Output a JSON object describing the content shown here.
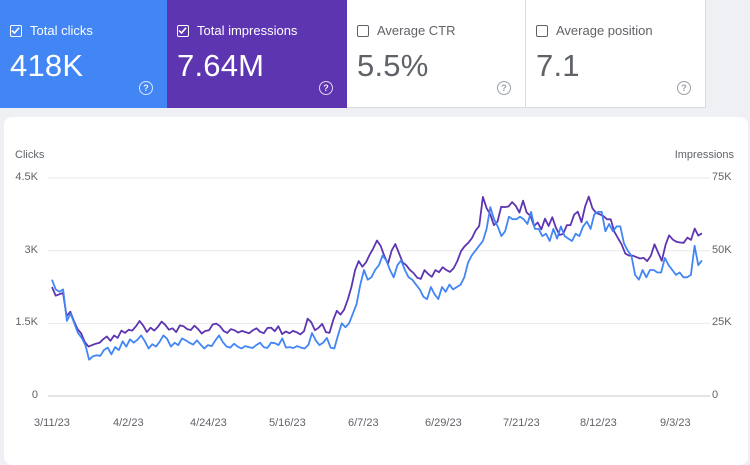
{
  "metrics": [
    {
      "label": "Total clicks",
      "value": "418K",
      "selected": true,
      "color": "#4285f4"
    },
    {
      "label": "Total impressions",
      "value": "7.64M",
      "selected": true,
      "color": "#5e35b1"
    },
    {
      "label": "Average CTR",
      "value": "5.5%",
      "selected": false
    },
    {
      "label": "Average position",
      "value": "7.1",
      "selected": false
    }
  ],
  "help_glyph": "?",
  "chart": {
    "left_axis_title": "Clicks",
    "right_axis_title": "Impressions",
    "left_ticks": [
      "4.5K",
      "3K",
      "1.5K",
      "0"
    ],
    "right_ticks": [
      "75K",
      "50K",
      "25K",
      "0"
    ],
    "x_ticks": [
      "3/11/23",
      "4/2/23",
      "4/24/23",
      "5/16/23",
      "6/7/23",
      "6/29/23",
      "7/21/23",
      "8/12/23",
      "9/3/23"
    ]
  },
  "chart_data": {
    "type": "line",
    "x_start": "3/11/23",
    "x_end": "9/10/23",
    "y_left_label": "Clicks",
    "y_right_label": "Impressions",
    "ylim_left": [
      0,
      4500
    ],
    "ylim_right": [
      0,
      75000
    ],
    "grid": true,
    "series": [
      {
        "name": "Total clicks",
        "axis": "left",
        "color": "#4285f4",
        "values": [
          2400,
          2200,
          2150,
          2200,
          1550,
          1700,
          1500,
          1300,
          1200,
          1050,
          750,
          820,
          840,
          830,
          950,
          1000,
          860,
          1010,
          950,
          1130,
          1020,
          1170,
          1100,
          1160,
          1250,
          1130,
          980,
          1070,
          1020,
          1120,
          1250,
          1180,
          1020,
          1100,
          1050,
          1190,
          1150,
          1100,
          1060,
          1150,
          1060,
          980,
          1050,
          1030,
          1150,
          1250,
          1110,
          1020,
          1000,
          1080,
          1020,
          980,
          1030,
          1010,
          990,
          1050,
          1100,
          1010,
          990,
          1100,
          1090,
          1050,
          1190,
          1000,
          1010,
          990,
          1030,
          1000,
          980,
          1050,
          1300,
          1150,
          1050,
          1100,
          1200,
          1000,
          980,
          1250,
          1500,
          1420,
          1500,
          1700,
          1900,
          2300,
          2600,
          2400,
          2450,
          2600,
          2700,
          2900,
          2800,
          2600,
          2450,
          2700,
          2800,
          2600,
          2450,
          2400,
          2300,
          2200,
          2050,
          2000,
          2250,
          2100,
          2000,
          2250,
          2150,
          2300,
          2200,
          2250,
          2300,
          2450,
          2750,
          2900,
          3000,
          3100,
          3200,
          3450,
          3900,
          3650,
          3500,
          3300,
          3400,
          3700,
          3650,
          3650,
          3700,
          3650,
          3550,
          3800,
          3450,
          3450,
          3300,
          3350,
          3200,
          3450,
          3250,
          3500,
          3300,
          3250,
          3200,
          3350,
          3300,
          3500,
          3600,
          3450,
          3750,
          3800,
          3800,
          3400,
          3550,
          3400,
          3500,
          3500,
          3150,
          3000,
          2900,
          2500,
          2400,
          2600,
          2450,
          2600,
          2600,
          2550,
          2550,
          2850,
          2700,
          2600,
          2500,
          2550,
          2450,
          2450,
          2500,
          3100,
          2700,
          2800
        ]
      },
      {
        "name": "Total impressions",
        "axis": "right",
        "color": "#5e35b1",
        "values": [
          37500,
          34500,
          35000,
          35500,
          27500,
          29000,
          25800,
          23000,
          21500,
          18500,
          17000,
          17500,
          18000,
          18300,
          19500,
          20500,
          19000,
          20800,
          20000,
          22500,
          21700,
          22800,
          22500,
          24000,
          25800,
          24200,
          22000,
          23500,
          22500,
          23800,
          25600,
          24500,
          22800,
          23300,
          22000,
          24300,
          24000,
          23000,
          22700,
          24200,
          23000,
          21500,
          22400,
          22600,
          24600,
          24900,
          24000,
          22400,
          21700,
          23000,
          22600,
          21800,
          22400,
          22000,
          21600,
          22600,
          23300,
          22100,
          21600,
          23400,
          23500,
          22300,
          24000,
          21300,
          22200,
          21600,
          22400,
          21900,
          21200,
          22300,
          26600,
          25400,
          22600,
          23500,
          24800,
          22000,
          21700,
          26100,
          29300,
          28000,
          29700,
          33200,
          37500,
          43300,
          46400,
          44500,
          46000,
          48600,
          50800,
          53500,
          51600,
          48200,
          45500,
          50000,
          52300,
          49200,
          46000,
          45000,
          43400,
          42300,
          40700,
          40300,
          43300,
          42000,
          41000,
          43300,
          42600,
          44300,
          43300,
          42700,
          44000,
          46400,
          49800,
          51500,
          52700,
          54300,
          56900,
          58500,
          68500,
          64600,
          62500,
          58800,
          60000,
          65100,
          65000,
          65200,
          66700,
          65400,
          63100,
          67200,
          63100,
          62000,
          58500,
          59700,
          57300,
          61000,
          58500,
          61500,
          57900,
          55400,
          55800,
          58800,
          58800,
          62400,
          63400,
          59800,
          65200,
          68600,
          64600,
          63000,
          62500,
          61900,
          60800,
          60800,
          56500,
          54300,
          52100,
          49000,
          48300,
          48300,
          47800,
          47300,
          47500,
          46400,
          48300,
          52200,
          49300,
          46500,
          51900,
          55300,
          53800,
          53100,
          52800,
          52700,
          54500,
          53700,
          57600,
          55200,
          56000
        ]
      }
    ]
  }
}
